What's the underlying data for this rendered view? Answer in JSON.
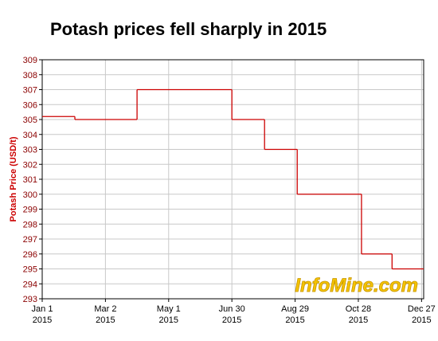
{
  "chart_data": {
    "type": "step",
    "title": "Potash prices fell sharply in 2015",
    "y_label": "Potash Price (USD/t)",
    "watermark": "InfoMine.com",
    "x": [
      "2015-01-01",
      "2015-02-01",
      "2015-04-01",
      "2015-06-30",
      "2015-07-31",
      "2015-08-31",
      "2015-10-31",
      "2015-11-29"
    ],
    "series": [
      {
        "name": "Potash",
        "color": "#cc0000",
        "values": [
          305.2,
          305,
          307,
          305,
          303,
          300,
          296,
          295
        ]
      }
    ],
    "xlim": [
      "2015-01-01",
      "2015-12-29"
    ],
    "xticks": [
      {
        "value": "2015-01-01",
        "label": "Jan 1\n2015"
      },
      {
        "value": "2015-03-02",
        "label": "Mar 2\n2015"
      },
      {
        "value": "2015-05-01",
        "label": "May 1\n2015"
      },
      {
        "value": "2015-06-30",
        "label": "Jun 30\n2015"
      },
      {
        "value": "2015-08-29",
        "label": "Aug 29\n2015"
      },
      {
        "value": "2015-10-28",
        "label": "Oct 28\n2015"
      },
      {
        "value": "2015-12-27",
        "label": "Dec 27\n2015"
      }
    ],
    "ylim": [
      293,
      309
    ],
    "yticks": [
      293,
      294,
      295,
      296,
      297,
      298,
      299,
      300,
      301,
      302,
      303,
      304,
      305,
      306,
      307,
      308,
      309
    ],
    "grid": true
  }
}
